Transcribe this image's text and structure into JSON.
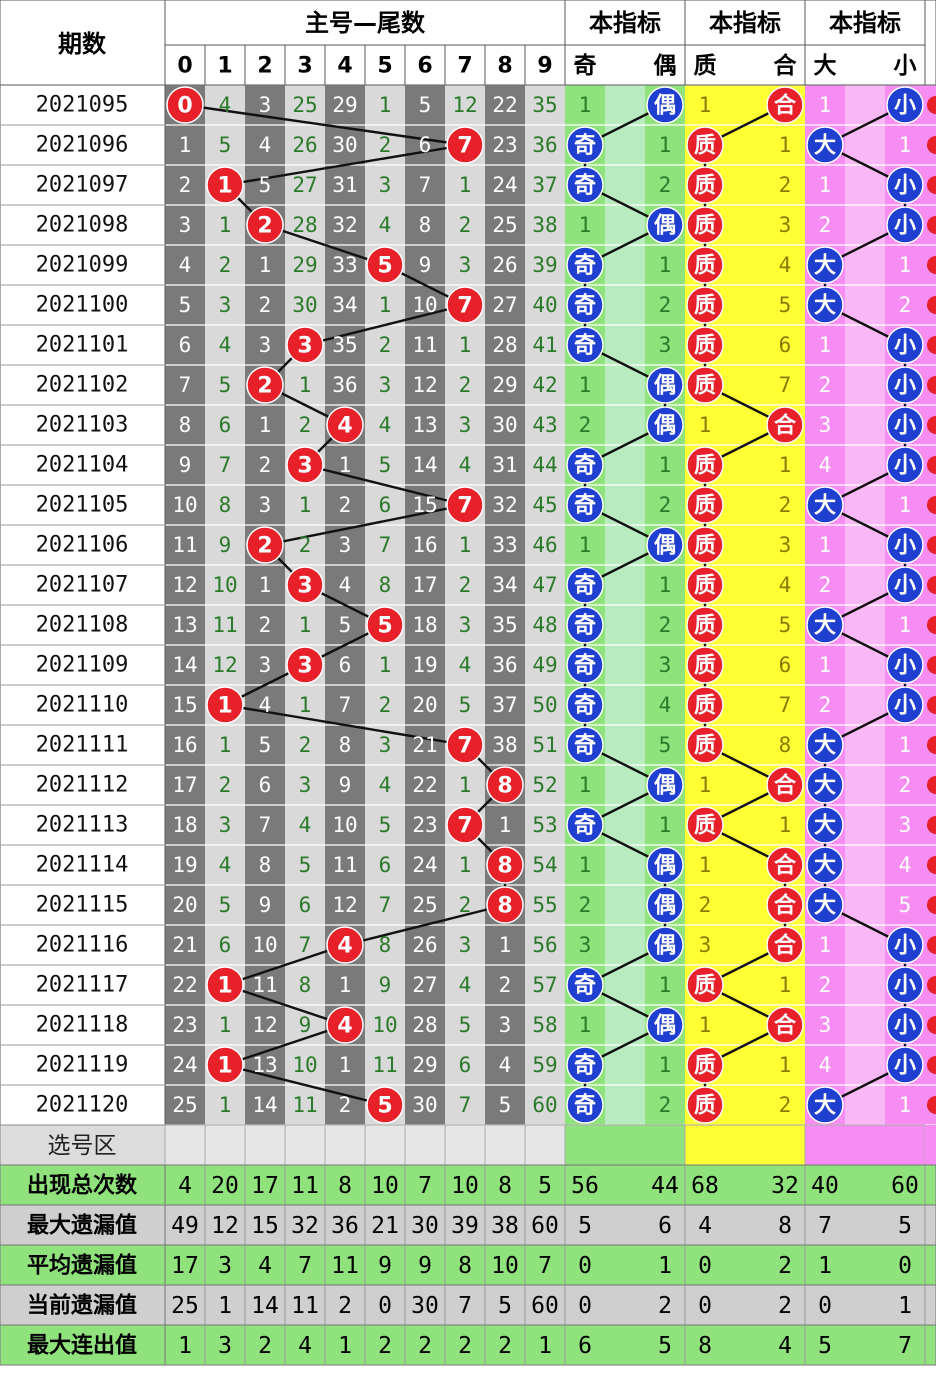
{
  "header": {
    "period": "期数",
    "main_group": "主号—尾数",
    "digits": [
      "0",
      "1",
      "2",
      "3",
      "4",
      "5",
      "6",
      "7",
      "8",
      "9"
    ],
    "ind1": "本指标",
    "ind2": "本指标",
    "ind3": "本指标",
    "odd": "奇",
    "even": "偶",
    "prime": "质",
    "composite": "合",
    "big": "大",
    "small": "小"
  },
  "rows": [
    {
      "period": "2021095",
      "w": [
        "0",
        "4",
        "3",
        "25",
        "29",
        "1",
        "5",
        "12",
        "22",
        "35"
      ],
      "hit": 0,
      "oe": [
        "1",
        "偶"
      ],
      "pc": [
        "1",
        "合"
      ],
      "bs": [
        "1",
        "小"
      ]
    },
    {
      "period": "2021096",
      "w": [
        "1",
        "5",
        "4",
        "26",
        "30",
        "2",
        "6",
        "7",
        "23",
        "36"
      ],
      "hit": 7,
      "oe": [
        "奇",
        "1"
      ],
      "pc": [
        "质",
        "1"
      ],
      "bs": [
        "大",
        "1"
      ]
    },
    {
      "period": "2021097",
      "w": [
        "2",
        "1",
        "5",
        "27",
        "31",
        "3",
        "7",
        "1",
        "24",
        "37"
      ],
      "hit": 1,
      "oe": [
        "奇",
        "2"
      ],
      "pc": [
        "质",
        "2"
      ],
      "bs": [
        "1",
        "小"
      ]
    },
    {
      "period": "2021098",
      "w": [
        "3",
        "1",
        "2",
        "28",
        "32",
        "4",
        "8",
        "2",
        "25",
        "38"
      ],
      "hit": 2,
      "oe": [
        "1",
        "偶"
      ],
      "pc": [
        "质",
        "3"
      ],
      "bs": [
        "2",
        "小"
      ]
    },
    {
      "period": "2021099",
      "w": [
        "4",
        "2",
        "1",
        "29",
        "33",
        "5",
        "9",
        "3",
        "26",
        "39"
      ],
      "hit": 5,
      "oe": [
        "奇",
        "1"
      ],
      "pc": [
        "质",
        "4"
      ],
      "bs": [
        "大",
        "1"
      ]
    },
    {
      "period": "2021100",
      "w": [
        "5",
        "3",
        "2",
        "30",
        "34",
        "1",
        "10",
        "7",
        "27",
        "40"
      ],
      "hit": 7,
      "oe": [
        "奇",
        "2"
      ],
      "pc": [
        "质",
        "5"
      ],
      "bs": [
        "大",
        "2"
      ]
    },
    {
      "period": "2021101",
      "w": [
        "6",
        "4",
        "3",
        "3",
        "35",
        "2",
        "11",
        "1",
        "28",
        "41"
      ],
      "hit": 3,
      "oe": [
        "奇",
        "3"
      ],
      "pc": [
        "质",
        "6"
      ],
      "bs": [
        "1",
        "小"
      ]
    },
    {
      "period": "2021102",
      "w": [
        "7",
        "5",
        "2",
        "1",
        "36",
        "3",
        "12",
        "2",
        "29",
        "42"
      ],
      "hit": 2,
      "oe": [
        "1",
        "偶"
      ],
      "pc": [
        "质",
        "7"
      ],
      "bs": [
        "2",
        "小"
      ]
    },
    {
      "period": "2021103",
      "w": [
        "8",
        "6",
        "1",
        "2",
        "4",
        "4",
        "13",
        "3",
        "30",
        "43"
      ],
      "hit": 4,
      "oe": [
        "2",
        "偶"
      ],
      "pc": [
        "1",
        "合"
      ],
      "bs": [
        "3",
        "小"
      ]
    },
    {
      "period": "2021104",
      "w": [
        "9",
        "7",
        "2",
        "3",
        "1",
        "5",
        "14",
        "4",
        "31",
        "44"
      ],
      "hit": 3,
      "oe": [
        "奇",
        "1"
      ],
      "pc": [
        "质",
        "1"
      ],
      "bs": [
        "4",
        "小"
      ]
    },
    {
      "period": "2021105",
      "w": [
        "10",
        "8",
        "3",
        "1",
        "2",
        "6",
        "15",
        "7",
        "32",
        "45"
      ],
      "hit": 7,
      "oe": [
        "奇",
        "2"
      ],
      "pc": [
        "质",
        "2"
      ],
      "bs": [
        "大",
        "1"
      ]
    },
    {
      "period": "2021106",
      "w": [
        "11",
        "9",
        "2",
        "2",
        "3",
        "7",
        "16",
        "1",
        "33",
        "46"
      ],
      "hit": 2,
      "oe": [
        "1",
        "偶"
      ],
      "pc": [
        "质",
        "3"
      ],
      "bs": [
        "1",
        "小"
      ]
    },
    {
      "period": "2021107",
      "w": [
        "12",
        "10",
        "1",
        "3",
        "4",
        "8",
        "17",
        "2",
        "34",
        "47"
      ],
      "hit": 3,
      "oe": [
        "奇",
        "1"
      ],
      "pc": [
        "质",
        "4"
      ],
      "bs": [
        "2",
        "小"
      ]
    },
    {
      "period": "2021108",
      "w": [
        "13",
        "11",
        "2",
        "1",
        "5",
        "5",
        "18",
        "3",
        "35",
        "48"
      ],
      "hit": 5,
      "oe": [
        "奇",
        "2"
      ],
      "pc": [
        "质",
        "5"
      ],
      "bs": [
        "大",
        "1"
      ]
    },
    {
      "period": "2021109",
      "w": [
        "14",
        "12",
        "3",
        "3",
        "6",
        "1",
        "19",
        "4",
        "36",
        "49"
      ],
      "hit": 3,
      "oe": [
        "奇",
        "3"
      ],
      "pc": [
        "质",
        "6"
      ],
      "bs": [
        "1",
        "小"
      ]
    },
    {
      "period": "2021110",
      "w": [
        "15",
        "1",
        "4",
        "1",
        "7",
        "2",
        "20",
        "5",
        "37",
        "50"
      ],
      "hit": 1,
      "oe": [
        "奇",
        "4"
      ],
      "pc": [
        "质",
        "7"
      ],
      "bs": [
        "2",
        "小"
      ]
    },
    {
      "period": "2021111",
      "w": [
        "16",
        "1",
        "5",
        "2",
        "8",
        "3",
        "21",
        "7",
        "38",
        "51"
      ],
      "hit": 7,
      "oe": [
        "奇",
        "5"
      ],
      "pc": [
        "质",
        "8"
      ],
      "bs": [
        "大",
        "1"
      ]
    },
    {
      "period": "2021112",
      "w": [
        "17",
        "2",
        "6",
        "3",
        "9",
        "4",
        "22",
        "1",
        "8",
        "52"
      ],
      "hit": 8,
      "oe": [
        "1",
        "偶"
      ],
      "pc": [
        "1",
        "合"
      ],
      "bs": [
        "大",
        "2"
      ]
    },
    {
      "period": "2021113",
      "w": [
        "18",
        "3",
        "7",
        "4",
        "10",
        "5",
        "23",
        "7",
        "1",
        "53"
      ],
      "hit": 7,
      "oe": [
        "奇",
        "1"
      ],
      "pc": [
        "质",
        "1"
      ],
      "bs": [
        "大",
        "3"
      ]
    },
    {
      "period": "2021114",
      "w": [
        "19",
        "4",
        "8",
        "5",
        "11",
        "6",
        "24",
        "1",
        "8",
        "54"
      ],
      "hit": 8,
      "oe": [
        "1",
        "偶"
      ],
      "pc": [
        "1",
        "合"
      ],
      "bs": [
        "大",
        "4"
      ]
    },
    {
      "period": "2021115",
      "w": [
        "20",
        "5",
        "9",
        "6",
        "12",
        "7",
        "25",
        "2",
        "8",
        "55"
      ],
      "hit": 8,
      "oe": [
        "2",
        "偶"
      ],
      "pc": [
        "2",
        "合"
      ],
      "bs": [
        "大",
        "5"
      ]
    },
    {
      "period": "2021116",
      "w": [
        "21",
        "6",
        "10",
        "7",
        "4",
        "8",
        "26",
        "3",
        "1",
        "56"
      ],
      "hit": 4,
      "oe": [
        "3",
        "偶"
      ],
      "pc": [
        "3",
        "合"
      ],
      "bs": [
        "1",
        "小"
      ]
    },
    {
      "period": "2021117",
      "w": [
        "22",
        "1",
        "11",
        "8",
        "1",
        "9",
        "27",
        "4",
        "2",
        "57"
      ],
      "hit": 1,
      "oe": [
        "奇",
        "1"
      ],
      "pc": [
        "质",
        "1"
      ],
      "bs": [
        "2",
        "小"
      ]
    },
    {
      "period": "2021118",
      "w": [
        "23",
        "1",
        "12",
        "9",
        "4",
        "10",
        "28",
        "5",
        "3",
        "58"
      ],
      "hit": 4,
      "oe": [
        "1",
        "偶"
      ],
      "pc": [
        "1",
        "合"
      ],
      "bs": [
        "3",
        "小"
      ]
    },
    {
      "period": "2021119",
      "w": [
        "24",
        "1",
        "13",
        "10",
        "1",
        "11",
        "29",
        "6",
        "4",
        "59"
      ],
      "hit": 1,
      "oe": [
        "奇",
        "1"
      ],
      "pc": [
        "质",
        "1"
      ],
      "bs": [
        "4",
        "小"
      ]
    },
    {
      "period": "2021120",
      "w": [
        "25",
        "1",
        "14",
        "11",
        "2",
        "5",
        "30",
        "7",
        "5",
        "60"
      ],
      "hit": 5,
      "oe": [
        "奇",
        "2"
      ],
      "pc": [
        "质",
        "2"
      ],
      "bs": [
        "大",
        "1"
      ]
    }
  ],
  "select_label": "选号区",
  "stats": [
    {
      "label": "出现总次数",
      "vals": [
        "4",
        "20",
        "17",
        "11",
        "8",
        "10",
        "7",
        "10",
        "8",
        "5"
      ],
      "oe": [
        "56",
        "44"
      ],
      "pc": [
        "68",
        "32"
      ],
      "bs": [
        "40",
        "60"
      ]
    },
    {
      "label": "最大遗漏值",
      "vals": [
        "49",
        "12",
        "15",
        "32",
        "36",
        "21",
        "30",
        "39",
        "38",
        "60"
      ],
      "oe": [
        "5",
        "6"
      ],
      "pc": [
        "4",
        "8"
      ],
      "bs": [
        "7",
        "5"
      ]
    },
    {
      "label": "平均遗漏值",
      "vals": [
        "17",
        "3",
        "4",
        "7",
        "11",
        "9",
        "9",
        "8",
        "10",
        "7"
      ],
      "oe": [
        "0",
        "1"
      ],
      "pc": [
        "0",
        "2"
      ],
      "bs": [
        "1",
        "0"
      ]
    },
    {
      "label": "当前遗漏值",
      "vals": [
        "25",
        "1",
        "14",
        "11",
        "2",
        "0",
        "30",
        "7",
        "5",
        "60"
      ],
      "oe": [
        "0",
        "2"
      ],
      "pc": [
        "0",
        "2"
      ],
      "bs": [
        "0",
        "1"
      ]
    },
    {
      "label": "最大连出值",
      "vals": [
        "1",
        "3",
        "2",
        "4",
        "1",
        "2",
        "2",
        "2",
        "2",
        "1"
      ],
      "oe": [
        "6",
        "5"
      ],
      "pc": [
        "8",
        "4"
      ],
      "bs": [
        "5",
        "7"
      ]
    }
  ],
  "colors": {
    "dark_col": "#7a7a7a",
    "light_col": "#d9d9d9",
    "hit_ball": "#e8202a",
    "blue_ball": "#1f3fd0",
    "green_bg": "#8fe27c",
    "green_alt": "#b8ecc0",
    "yellow_bg": "#ffff33",
    "magenta_bg": "#f78cf2",
    "stat_green": "#8fe27c",
    "stat_gray": "#cfcfcf"
  }
}
